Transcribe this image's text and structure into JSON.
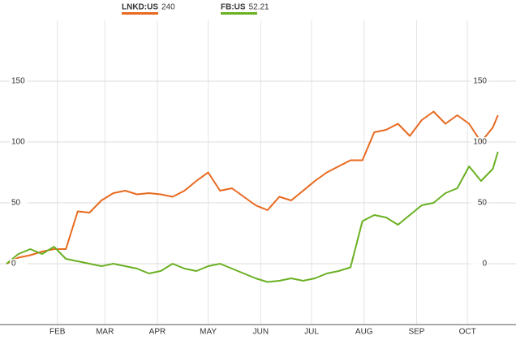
{
  "chart_data": {
    "type": "line",
    "x": [
      1,
      8,
      15,
      22,
      29,
      36,
      43,
      50,
      57,
      64,
      71,
      78,
      85,
      92,
      99,
      106,
      113,
      120,
      127,
      134,
      141,
      148,
      155,
      162,
      169,
      176,
      183,
      190,
      197,
      204,
      211,
      218,
      225,
      232,
      239,
      246,
      253,
      260,
      267,
      274,
      281,
      288,
      291
    ],
    "series": [
      {
        "name": "LNKD:US",
        "last": "240",
        "color": "#e8691f",
        "values": [
          0,
          5,
          7,
          10,
          12,
          12,
          43,
          42,
          52,
          58,
          60,
          57,
          58,
          57,
          55,
          60,
          68,
          75,
          60,
          62,
          55,
          48,
          44,
          55,
          52,
          60,
          68,
          75,
          80,
          85,
          85,
          108,
          110,
          115,
          105,
          118,
          125,
          115,
          122,
          115,
          100,
          112,
          122
        ]
      },
      {
        "name": "FB:US",
        "last": "52.21",
        "color": "#6ab023",
        "values": [
          0,
          8,
          12,
          8,
          14,
          4,
          2,
          0,
          -2,
          0,
          -2,
          -4,
          -8,
          -6,
          0,
          -4,
          -6,
          -2,
          0,
          -4,
          -8,
          -12,
          -15,
          -14,
          -12,
          -14,
          -12,
          -8,
          -6,
          -3,
          35,
          40,
          38,
          32,
          40,
          48,
          50,
          58,
          62,
          80,
          68,
          78,
          92
        ]
      }
    ],
    "xlim": [
      0,
      294
    ],
    "xticks": [
      {
        "value": 31,
        "label": "FEB"
      },
      {
        "value": 59,
        "label": "MAR"
      },
      {
        "value": 90,
        "label": "APR"
      },
      {
        "value": 120,
        "label": "MAY"
      },
      {
        "value": 151,
        "label": "JUN"
      },
      {
        "value": 181,
        "label": "JUL"
      },
      {
        "value": 212,
        "label": "AUG"
      },
      {
        "value": 243,
        "label": "SEP"
      },
      {
        "value": 273,
        "label": "OCT"
      }
    ],
    "ylim": [
      -50,
      200
    ],
    "yticks": [
      0,
      50,
      100,
      150
    ],
    "grid": true
  }
}
